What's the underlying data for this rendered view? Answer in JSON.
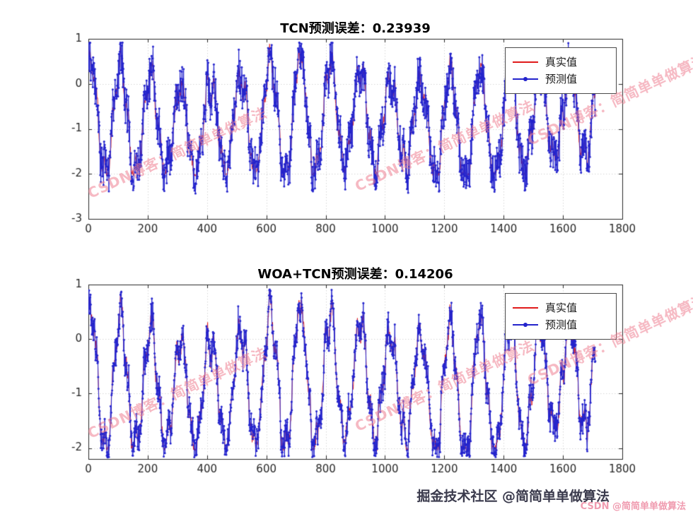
{
  "page": {
    "background": "#ffffff"
  },
  "colors": {
    "axis": "#262626",
    "grid": "#d6d6d6",
    "true_line": "#e01a1a",
    "pred_line": "#2323cc",
    "watermark": "#ee8093",
    "footer_dark": "#3a3a4c",
    "footer_pink": "#f09cb0"
  },
  "watermark": {
    "text": "CSDN博客：简简单单做算法"
  },
  "footer": {
    "juejin_text": "掘金技术社区 @简简单单做算法",
    "csdn_text": "CSDN @简简单单做算法"
  },
  "signal_model": {
    "seed": 20240607,
    "n": 1710,
    "base_level": -0.85,
    "amp1": 1.12,
    "period1": 101,
    "phase1": 1.1,
    "amp2": 0.22,
    "period2": 26.5,
    "phase2": 1.0,
    "am_depth": 0.17,
    "am_period": 640,
    "am_phase": 1.2,
    "drift_amp": 0.12,
    "drift_period": 880,
    "drift_phase": 2.1,
    "true_noise": 0.14,
    "floor": -2.05
  },
  "chart_data": [
    {
      "type": "line",
      "title": "TCN预测误差：0.23939",
      "stated_error": 0.23939,
      "xlim": [
        0,
        1800
      ],
      "ylim": [
        -3,
        1
      ],
      "xticks": [
        0,
        200,
        400,
        600,
        800,
        1000,
        1200,
        1400,
        1600,
        1800
      ],
      "yticks": [
        1,
        0,
        -1,
        -2,
        -3
      ],
      "grid": true,
      "n_points": 1710,
      "legend": {
        "position": "northeast",
        "entries": [
          {
            "label": "真实值",
            "color": "#e01a1a",
            "marker": "none"
          },
          {
            "label": "预测值",
            "color": "#2323cc",
            "marker": "dot"
          }
        ]
      },
      "series": [
        {
          "name": "真实值",
          "color": "#e01a1a",
          "role": "true"
        },
        {
          "name": "预测值",
          "color": "#2323cc",
          "role": "pred",
          "pred_noise": 0.26,
          "seed_offset": 101,
          "clamp_max": 0.92
        }
      ]
    },
    {
      "type": "line",
      "title": "WOA+TCN预测误差：0.14206",
      "stated_error": 0.14206,
      "xlim": [
        0,
        1800
      ],
      "ylim": [
        -2.2,
        1
      ],
      "xticks": [
        0,
        200,
        400,
        600,
        800,
        1000,
        1200,
        1400,
        1600,
        1800
      ],
      "yticks": [
        1,
        0,
        -1,
        -2
      ],
      "grid": true,
      "n_points": 1710,
      "legend": {
        "position": "northeast",
        "entries": [
          {
            "label": "真实值",
            "color": "#e01a1a",
            "marker": "none"
          },
          {
            "label": "预测值",
            "color": "#2323cc",
            "marker": "dot"
          }
        ]
      },
      "series": [
        {
          "name": "真实值",
          "color": "#e01a1a",
          "role": "true"
        },
        {
          "name": "预测值",
          "color": "#2323cc",
          "role": "pred",
          "pred_noise": 0.15,
          "seed_offset": 202,
          "clamp_min": -2.17,
          "clamp_max": 0.92
        }
      ]
    }
  ]
}
